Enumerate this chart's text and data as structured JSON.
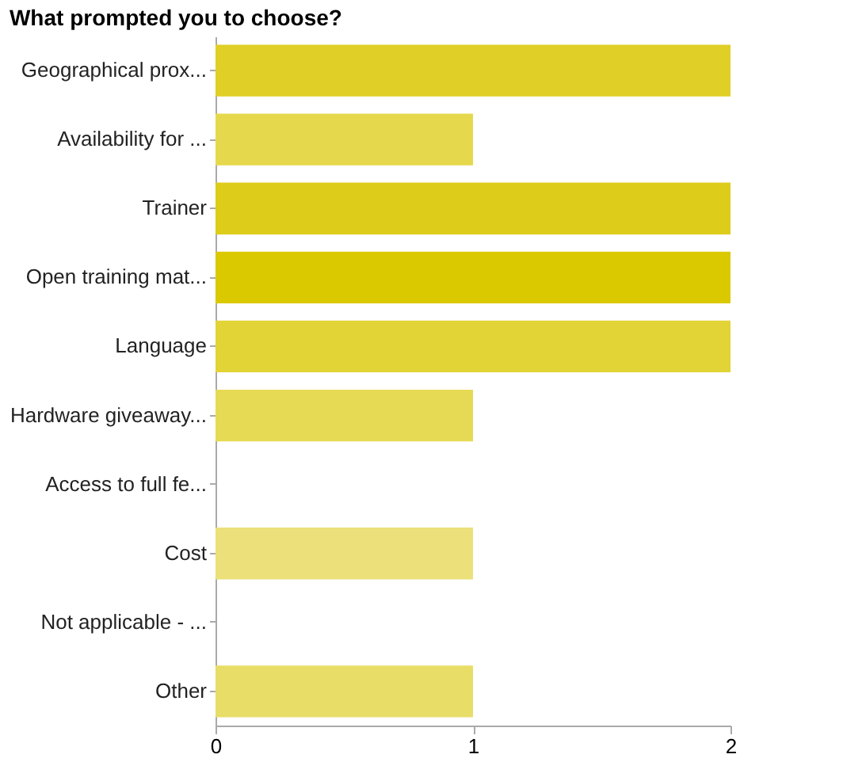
{
  "chart_data": {
    "type": "bar",
    "orientation": "horizontal",
    "title": "What prompted you to choose?",
    "categories": [
      "Geographical prox...",
      "Availability for ...",
      "Trainer",
      "Open training mat...",
      "Language",
      "Hardware giveaway...",
      "Access to full fe...",
      "Cost",
      "Not applicable - ...",
      "Other"
    ],
    "values": [
      2,
      1,
      2,
      2,
      2,
      1,
      0,
      1,
      0,
      1
    ],
    "colors": [
      "#e0cf26",
      "#e6d84d",
      "#ddcc1a",
      "#dbc900",
      "#e2d336",
      "#e6da55",
      "#e4d444",
      "#ebe07a",
      "#e4d444",
      "#e8dd66"
    ],
    "xlim": [
      0,
      2
    ],
    "xticks": [
      0,
      1,
      2
    ],
    "grid": false
  }
}
